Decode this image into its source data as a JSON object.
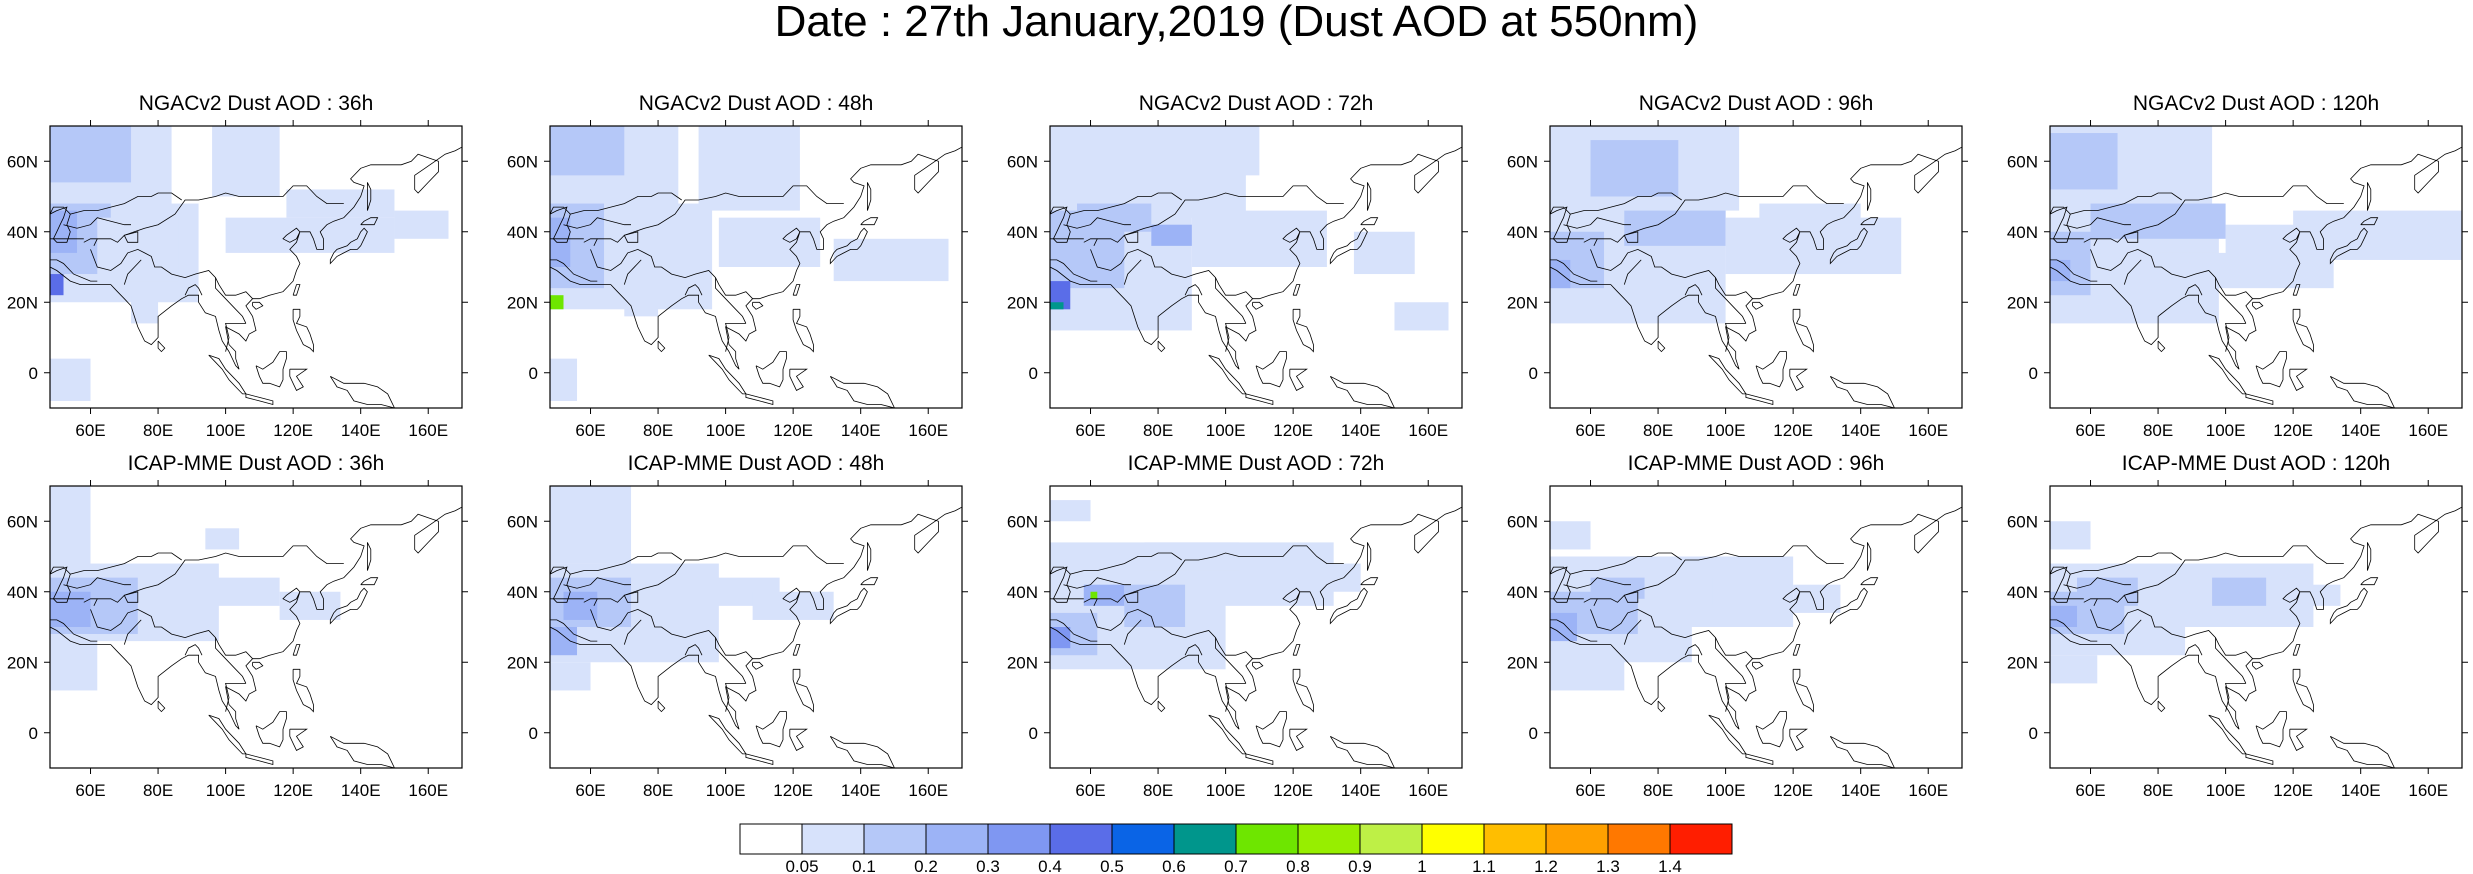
{
  "title": "Date : 27th January,2019 (Dust AOD at 550nm)",
  "map_axes": {
    "x_tick_labels": [
      "60E",
      "80E",
      "100E",
      "120E",
      "140E",
      "160E"
    ],
    "y_tick_labels": [
      "60N",
      "40N",
      "20N",
      "0"
    ],
    "lon_range": [
      48,
      170
    ],
    "lat_range": [
      -10,
      70
    ]
  },
  "rows": [
    {
      "model": "NGACv2",
      "panels": [
        {
          "title": "NGACv2 Dust AOD : 36h"
        },
        {
          "title": "NGACv2 Dust AOD : 48h"
        },
        {
          "title": "NGACv2 Dust AOD : 72h"
        },
        {
          "title": "NGACv2 Dust AOD : 96h"
        },
        {
          "title": "NGACv2 Dust AOD : 120h"
        }
      ]
    },
    {
      "model": "ICAP-MME",
      "panels": [
        {
          "title": "ICAP-MME Dust AOD : 36h"
        },
        {
          "title": "ICAP-MME Dust AOD : 48h"
        },
        {
          "title": "ICAP-MME Dust AOD : 72h"
        },
        {
          "title": "ICAP-MME Dust AOD : 96h"
        },
        {
          "title": "ICAP-MME Dust AOD : 120h"
        }
      ]
    }
  ],
  "colorbar": {
    "labels": [
      "0.05",
      "0.1",
      "0.2",
      "0.3",
      "0.4",
      "0.5",
      "0.6",
      "0.7",
      "0.8",
      "0.9",
      "1",
      "1.1",
      "1.2",
      "1.3",
      "1.4"
    ],
    "colors": [
      "#ffffff",
      "#d7e2fb",
      "#b5c8f8",
      "#9cb3f6",
      "#7f97f2",
      "#5a6de8",
      "#0a64e6",
      "#00968c",
      "#6ee600",
      "#97ee00",
      "#bef046",
      "#ffff00",
      "#ffbe00",
      "#ffa000",
      "#ff7800",
      "#ff1e00"
    ]
  }
}
